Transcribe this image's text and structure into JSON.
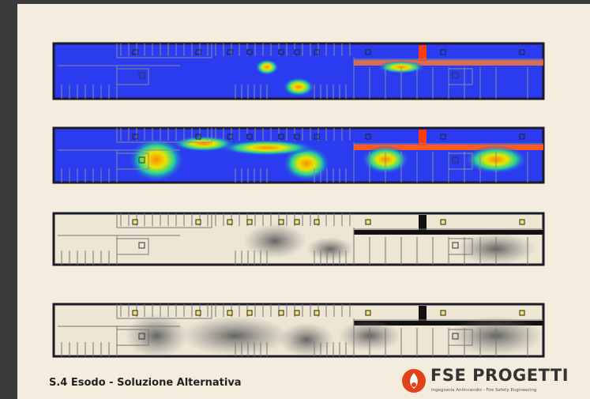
{
  "footer": {
    "title": "S.4 Esodo - Soluzione Alternativa",
    "logo": {
      "name": "FSE PROGETTI",
      "tagline": "Ingegneria Antincendio - Fire Safety Engineering"
    }
  }
}
